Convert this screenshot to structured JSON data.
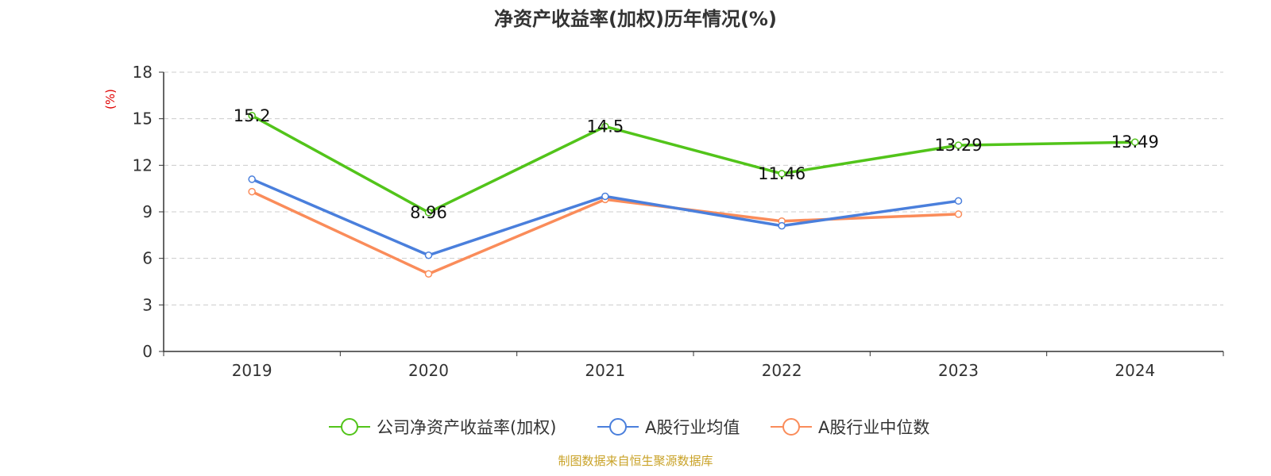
{
  "chart_data": {
    "type": "line",
    "title": "净资产收益率(加权)历年情况(%)",
    "ylabel": "(%)",
    "categories": [
      "2019",
      "2020",
      "2021",
      "2022",
      "2023",
      "2024"
    ],
    "ylim": [
      0,
      18
    ],
    "yticks": [
      "0",
      "3",
      "6",
      "9",
      "12",
      "15",
      "18"
    ],
    "grid": true,
    "legend": "bottom",
    "series": [
      {
        "name": "公司净资产收益率(加权)",
        "color": "#52c41a",
        "values": [
          15.2,
          8.96,
          14.5,
          11.46,
          13.29,
          13.49
        ],
        "labels": [
          "15.2",
          "8.96",
          "14.5",
          "11.46",
          "13.29",
          "13.49"
        ]
      },
      {
        "name": "A股行业均值",
        "color": "#4a7fdc",
        "values": [
          11.1,
          6.2,
          10.0,
          8.1,
          9.7,
          null
        ]
      },
      {
        "name": "A股行业中位数",
        "color": "#fa8c5a",
        "values": [
          10.3,
          5.0,
          9.8,
          8.4,
          8.85,
          null
        ]
      }
    ],
    "source": "制图数据来自恒生聚源数据库"
  }
}
